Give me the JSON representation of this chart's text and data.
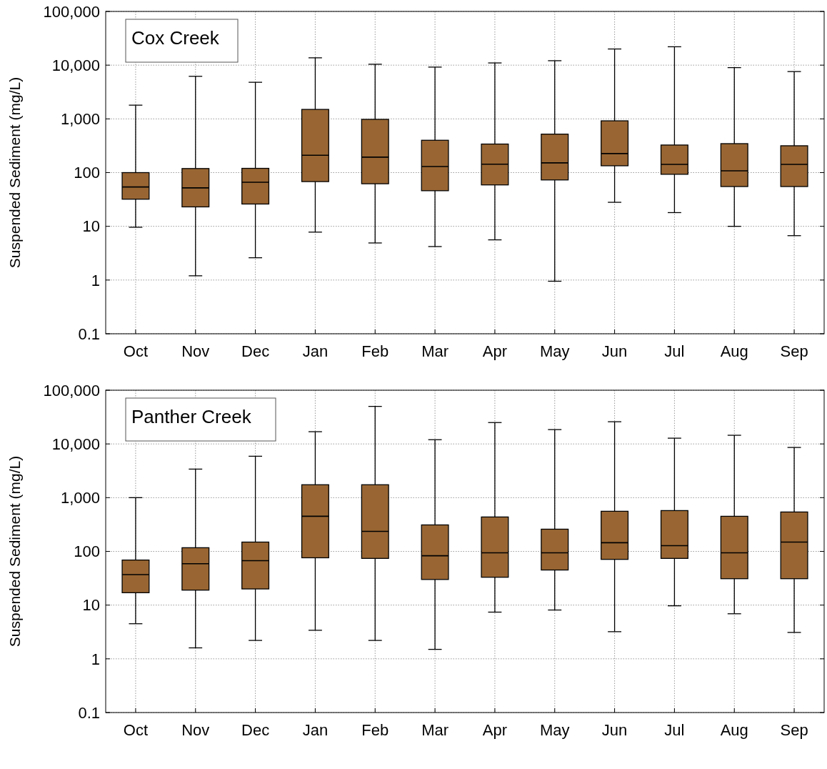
{
  "chart_data": [
    {
      "type": "box",
      "title": "Cox Creek",
      "ylabel": "Suspended Sediment (mg/L)",
      "log": true,
      "grid": true,
      "color": "#996633",
      "categories": [
        "Oct",
        "Nov",
        "Dec",
        "Jan",
        "Feb",
        "Mar",
        "Apr",
        "May",
        "Jun",
        "Jul",
        "Aug",
        "Sep"
      ],
      "ylim": [
        0.1,
        100000
      ],
      "yticks": [
        {
          "value": 0.1,
          "label": "0.1"
        },
        {
          "value": 1,
          "label": "1"
        },
        {
          "value": 10,
          "label": "10"
        },
        {
          "value": 100,
          "label": "100"
        },
        {
          "value": 1000,
          "label": "1,000"
        },
        {
          "value": 10000,
          "label": "10,000"
        },
        {
          "value": 100000,
          "label": "100,000"
        }
      ],
      "boxes": [
        {
          "low": 9.6,
          "q1": 32,
          "median": 54,
          "q3": 100,
          "high": 1800
        },
        {
          "low": 1.2,
          "q1": 23,
          "median": 52,
          "q3": 119,
          "high": 6200
        },
        {
          "low": 2.6,
          "q1": 26,
          "median": 66,
          "q3": 120,
          "high": 4800
        },
        {
          "low": 7.8,
          "q1": 68,
          "median": 210,
          "q3": 1500,
          "high": 13700
        },
        {
          "low": 4.9,
          "q1": 62,
          "median": 194,
          "q3": 980,
          "high": 10400
        },
        {
          "low": 4.2,
          "q1": 46,
          "median": 130,
          "q3": 400,
          "high": 9200
        },
        {
          "low": 5.6,
          "q1": 59,
          "median": 143,
          "q3": 340,
          "high": 11000
        },
        {
          "low": 0.95,
          "q1": 73,
          "median": 152,
          "q3": 520,
          "high": 12100
        },
        {
          "low": 28,
          "q1": 134,
          "median": 226,
          "q3": 920,
          "high": 20000
        },
        {
          "low": 18,
          "q1": 93,
          "median": 142,
          "q3": 326,
          "high": 22000
        },
        {
          "low": 10,
          "q1": 55,
          "median": 108,
          "q3": 346,
          "high": 9000
        },
        {
          "low": 6.7,
          "q1": 55,
          "median": 142,
          "q3": 316,
          "high": 7600
        }
      ]
    },
    {
      "type": "box",
      "title": "Panther Creek",
      "ylabel": "Suspended Sediment (mg/L)",
      "log": true,
      "grid": true,
      "color": "#996633",
      "categories": [
        "Oct",
        "Nov",
        "Dec",
        "Jan",
        "Feb",
        "Mar",
        "Apr",
        "May",
        "Jun",
        "Jul",
        "Aug",
        "Sep"
      ],
      "ylim": [
        0.1,
        100000
      ],
      "yticks": [
        {
          "value": 0.1,
          "label": "0.1"
        },
        {
          "value": 1,
          "label": "1"
        },
        {
          "value": 10,
          "label": "10"
        },
        {
          "value": 100,
          "label": "100"
        },
        {
          "value": 1000,
          "label": "1,000"
        },
        {
          "value": 10000,
          "label": "10,000"
        },
        {
          "value": 100000,
          "label": "100,000"
        }
      ],
      "boxes": [
        {
          "low": 4.5,
          "q1": 17,
          "median": 37,
          "q3": 69,
          "high": 1000
        },
        {
          "low": 1.6,
          "q1": 19,
          "median": 59,
          "q3": 117,
          "high": 3400
        },
        {
          "low": 2.2,
          "q1": 20,
          "median": 67,
          "q3": 149,
          "high": 5900
        },
        {
          "low": 3.4,
          "q1": 76,
          "median": 450,
          "q3": 1740,
          "high": 16900
        },
        {
          "low": 2.2,
          "q1": 74,
          "median": 236,
          "q3": 1740,
          "high": 50000
        },
        {
          "low": 1.5,
          "q1": 30,
          "median": 83,
          "q3": 311,
          "high": 12000
        },
        {
          "low": 7.4,
          "q1": 33,
          "median": 94,
          "q3": 437,
          "high": 25000
        },
        {
          "low": 8.1,
          "q1": 45,
          "median": 94,
          "q3": 259,
          "high": 18500
        },
        {
          "low": 3.2,
          "q1": 71,
          "median": 145,
          "q3": 558,
          "high": 25900
        },
        {
          "low": 9.7,
          "q1": 74,
          "median": 128,
          "q3": 575,
          "high": 12800
        },
        {
          "low": 6.9,
          "q1": 31,
          "median": 94,
          "q3": 450,
          "high": 14500
        },
        {
          "low": 3.1,
          "q1": 31,
          "median": 149,
          "q3": 541,
          "high": 8600
        }
      ]
    }
  ]
}
